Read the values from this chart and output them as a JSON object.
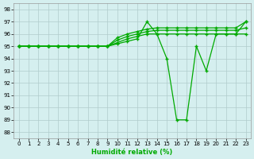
{
  "xlabel": "Humidité relative (%)",
  "xlim": [
    -0.5,
    23.5
  ],
  "ylim": [
    87.5,
    98.5
  ],
  "yticks": [
    88,
    89,
    90,
    91,
    92,
    93,
    94,
    95,
    96,
    97,
    98
  ],
  "xticks": [
    0,
    1,
    2,
    3,
    4,
    5,
    6,
    7,
    8,
    9,
    10,
    11,
    12,
    13,
    14,
    15,
    16,
    17,
    18,
    19,
    20,
    21,
    22,
    23
  ],
  "bg_color": "#d5efef",
  "grid_color": "#b0cccc",
  "line_color": "#00aa00",
  "series": [
    [
      95,
      95,
      95,
      95,
      95,
      95,
      95,
      95,
      95,
      95,
      95.2,
      95.4,
      95.6,
      97,
      96,
      94,
      89,
      89,
      95,
      93,
      96,
      96,
      96,
      97
    ],
    [
      95,
      95,
      95,
      95,
      95,
      95,
      95,
      95,
      95,
      95,
      95.3,
      95.6,
      95.8,
      96,
      96,
      96,
      96,
      96,
      96,
      96,
      96,
      96,
      96,
      96
    ],
    [
      95,
      95,
      95,
      95,
      95,
      95,
      95,
      95,
      95,
      95,
      95.5,
      95.8,
      96,
      96.2,
      96.3,
      96.3,
      96.3,
      96.3,
      96.3,
      96.3,
      96.3,
      96.3,
      96.3,
      96.5
    ],
    [
      95,
      95,
      95,
      95,
      95,
      95,
      95,
      95,
      95,
      95,
      95.7,
      96,
      96.2,
      96.4,
      96.5,
      96.5,
      96.5,
      96.5,
      96.5,
      96.5,
      96.5,
      96.5,
      96.5,
      97
    ]
  ]
}
